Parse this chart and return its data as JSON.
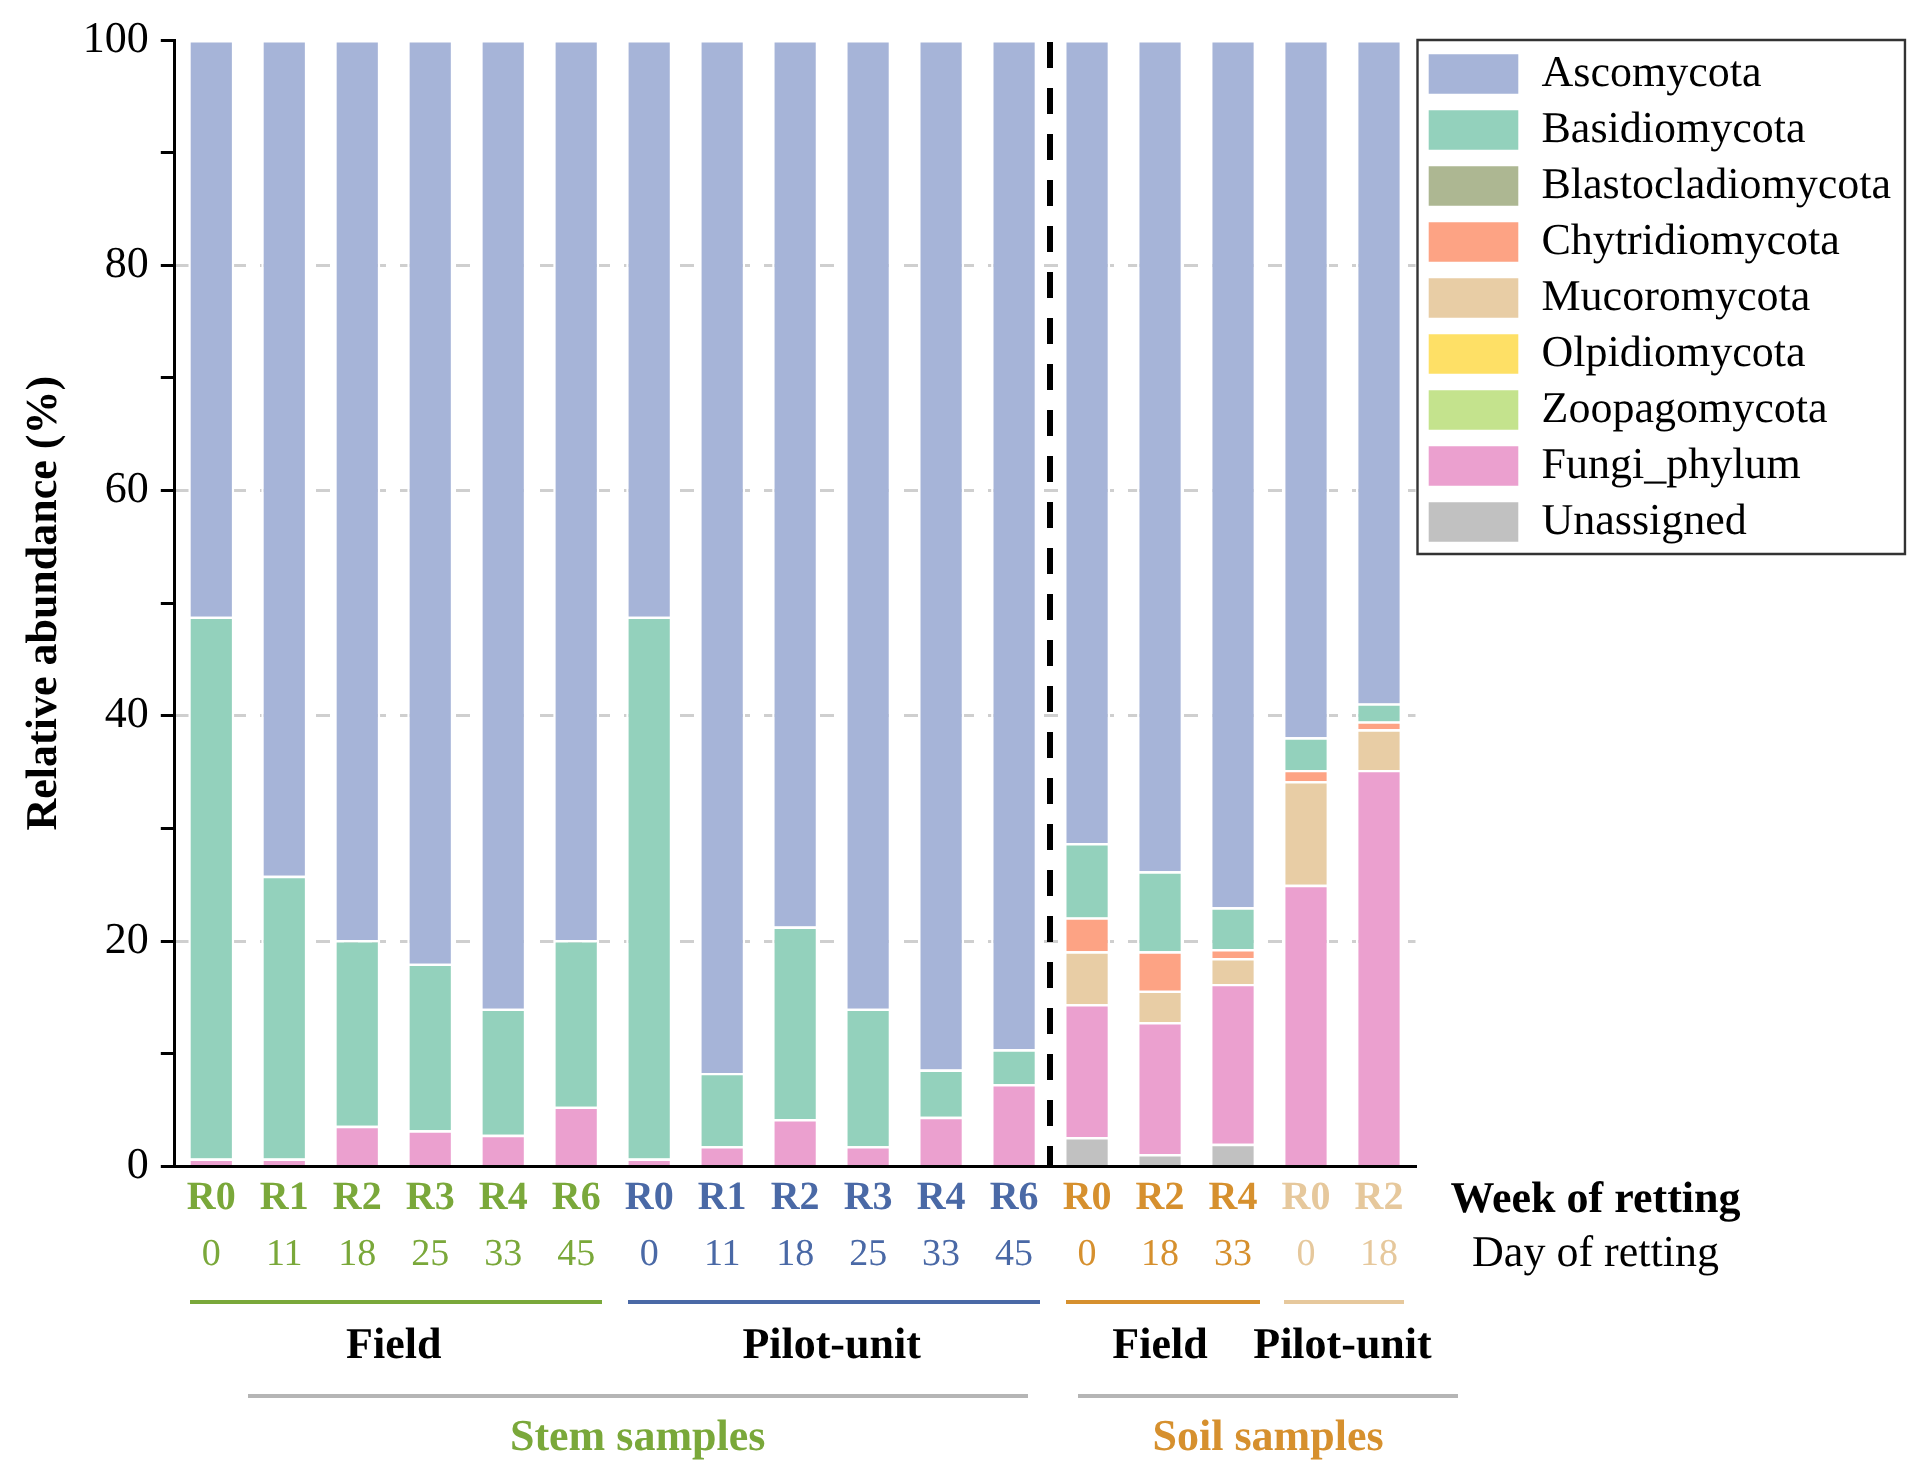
{
  "chart_data": {
    "type": "bar",
    "stacked": true,
    "categories": [
      "R0\n0",
      "R1\n11",
      "R2\n18",
      "R3\n25",
      "R4\n33",
      "R6\n45",
      "R0\n0",
      "R1\n11",
      "R2\n18",
      "R3\n25",
      "R4\n33",
      "R6\n45",
      "R0\n0",
      "R2\n18",
      "R4\n33",
      "R0\n0",
      "R2\n18"
    ],
    "series": [
      {
        "name": "Unassigned",
        "color": "#c1c1c1",
        "values": [
          0,
          0,
          0,
          0,
          0,
          0,
          0,
          0,
          0,
          0,
          0,
          0,
          2.6,
          1.1,
          2.0,
          0,
          0
        ]
      },
      {
        "name": "Fungi_phylum",
        "color": "#eba0cf",
        "values": [
          0.7,
          0.7,
          3.6,
          3.2,
          2.8,
          5.3,
          0.7,
          1.8,
          4.2,
          1.8,
          4.4,
          7.3,
          11.8,
          11.7,
          14.2,
          25.0,
          35.2
        ]
      },
      {
        "name": "Zoopagomycota",
        "color": "#c4e38d",
        "values": [
          0,
          0,
          0,
          0,
          0,
          0,
          0,
          0,
          0,
          0,
          0,
          0,
          0,
          0,
          0,
          0,
          0
        ]
      },
      {
        "name": "Olpidiomycota",
        "color": "#fee066",
        "values": [
          0,
          0,
          0,
          0,
          0,
          0,
          0,
          0,
          0,
          0,
          0,
          0,
          0,
          0,
          0,
          0,
          0
        ]
      },
      {
        "name": "Mucoromycota",
        "color": "#e8cda5",
        "values": [
          0,
          0,
          0,
          0,
          0,
          0,
          0,
          0,
          0,
          0,
          0,
          0,
          4.7,
          2.8,
          2.3,
          9.2,
          3.6
        ]
      },
      {
        "name": "Chytridiomycota",
        "color": "#fda384",
        "values": [
          0,
          0,
          0,
          0,
          0,
          0,
          0,
          0,
          0,
          0,
          0,
          0,
          3.0,
          3.5,
          0.8,
          1.0,
          0.7
        ]
      },
      {
        "name": "Blastocladiomycota",
        "color": "#adb792",
        "values": [
          0,
          0,
          0,
          0,
          0,
          0,
          0,
          0,
          0,
          0,
          0,
          0,
          0,
          0,
          0,
          0,
          0
        ]
      },
      {
        "name": "Basidiomycota",
        "color": "#93d1bc",
        "values": [
          48.1,
          25.1,
          16.5,
          14.8,
          11.2,
          14.8,
          48.1,
          6.5,
          17.1,
          12.2,
          4.2,
          3.1,
          6.6,
          7.1,
          3.7,
          2.9,
          1.6
        ]
      },
      {
        "name": "Ascomycota",
        "color": "#a6b4d8",
        "values": [
          51.2,
          74.2,
          79.9,
          82.0,
          86.0,
          79.9,
          51.2,
          91.7,
          78.7,
          86.0,
          91.4,
          89.6,
          71.3,
          73.8,
          77.0,
          61.9,
          58.9
        ]
      }
    ],
    "ylabel": "Relative abundance (%)",
    "ylim": [
      0,
      100
    ],
    "yticks": [
      0,
      {
        "value": 10,
        "label": null
      },
      20,
      {
        "value": 30,
        "label": null
      },
      40,
      {
        "value": 50,
        "label": null
      },
      60,
      {
        "value": 70,
        "label": null
      },
      80,
      {
        "value": 90,
        "label": null
      },
      100
    ],
    "grid": "y",
    "legend": "top right",
    "annotations": [
      "Week of retting",
      "Day of retting",
      "Field",
      "Pilot-unit",
      "Field",
      "Pilot-unit",
      "Stem samples",
      "Soil samples"
    ]
  }
}
